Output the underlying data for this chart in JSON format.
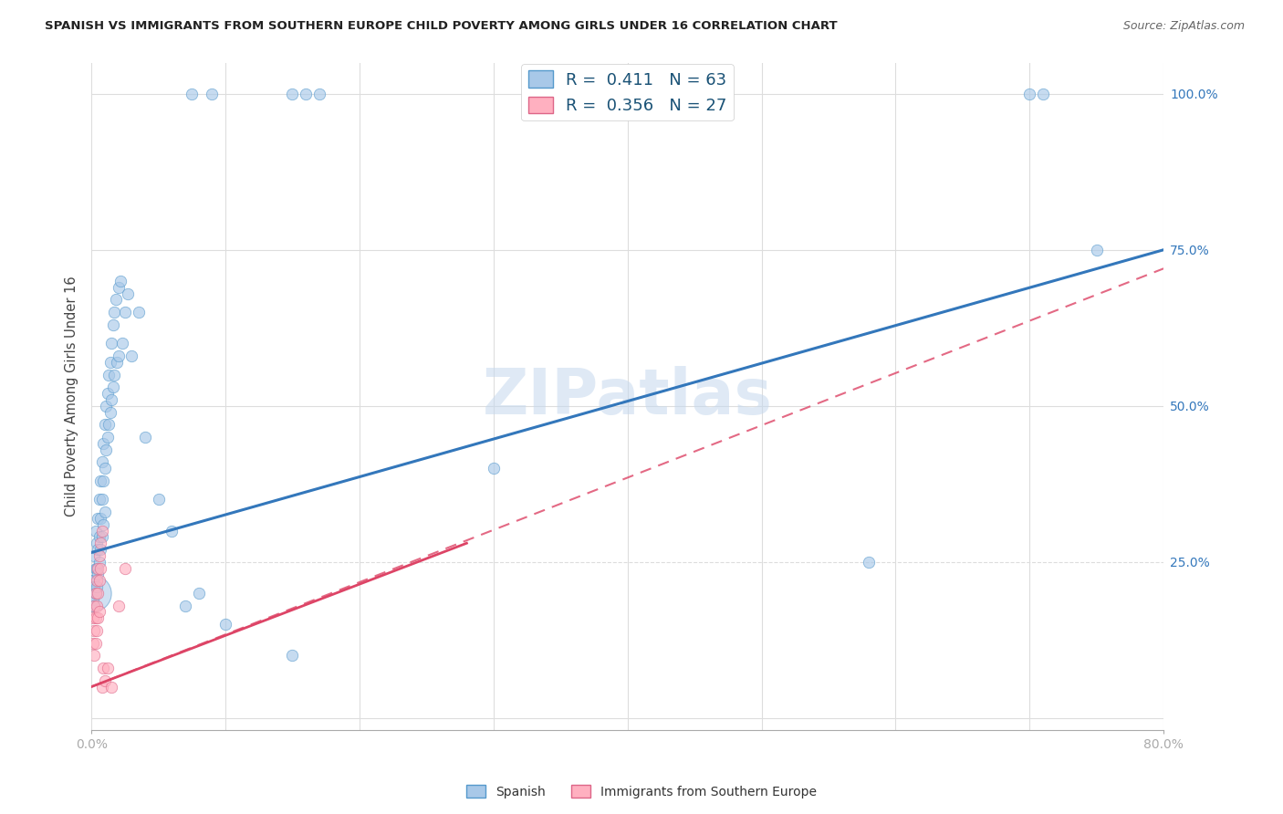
{
  "title": "SPANISH VS IMMIGRANTS FROM SOUTHERN EUROPE CHILD POVERTY AMONG GIRLS UNDER 16 CORRELATION CHART",
  "source": "Source: ZipAtlas.com",
  "ylabel": "Child Poverty Among Girls Under 16",
  "xlim": [
    0.0,
    0.8
  ],
  "ylim": [
    -0.02,
    1.05
  ],
  "ytick_positions": [
    0.0,
    0.25,
    0.5,
    0.75,
    1.0
  ],
  "yticklabels": [
    "",
    "25.0%",
    "50.0%",
    "75.0%",
    "100.0%"
  ],
  "legend_R1": "0.411",
  "legend_N1": "63",
  "legend_R2": "0.356",
  "legend_N2": "27",
  "blue_color": "#a8c8e8",
  "blue_edge_color": "#5599cc",
  "pink_color": "#ffb0c0",
  "pink_edge_color": "#dd6688",
  "blue_line_color": "#3377bb",
  "pink_line_color": "#dd4466",
  "watermark": "ZIPatlas",
  "background_color": "#ffffff",
  "grid_color": "#dddddd",
  "spanish_points": [
    [
      0.001,
      0.22
    ],
    [
      0.001,
      0.19
    ],
    [
      0.002,
      0.26
    ],
    [
      0.002,
      0.21
    ],
    [
      0.002,
      0.18
    ],
    [
      0.003,
      0.3
    ],
    [
      0.003,
      0.24
    ],
    [
      0.003,
      0.2
    ],
    [
      0.004,
      0.28
    ],
    [
      0.004,
      0.24
    ],
    [
      0.004,
      0.21
    ],
    [
      0.005,
      0.32
    ],
    [
      0.005,
      0.27
    ],
    [
      0.005,
      0.23
    ],
    [
      0.006,
      0.35
    ],
    [
      0.006,
      0.29
    ],
    [
      0.006,
      0.25
    ],
    [
      0.007,
      0.38
    ],
    [
      0.007,
      0.32
    ],
    [
      0.007,
      0.27
    ],
    [
      0.008,
      0.41
    ],
    [
      0.008,
      0.35
    ],
    [
      0.008,
      0.29
    ],
    [
      0.009,
      0.44
    ],
    [
      0.009,
      0.38
    ],
    [
      0.009,
      0.31
    ],
    [
      0.01,
      0.47
    ],
    [
      0.01,
      0.4
    ],
    [
      0.01,
      0.33
    ],
    [
      0.011,
      0.5
    ],
    [
      0.011,
      0.43
    ],
    [
      0.012,
      0.52
    ],
    [
      0.012,
      0.45
    ],
    [
      0.013,
      0.55
    ],
    [
      0.013,
      0.47
    ],
    [
      0.014,
      0.57
    ],
    [
      0.014,
      0.49
    ],
    [
      0.015,
      0.6
    ],
    [
      0.015,
      0.51
    ],
    [
      0.016,
      0.63
    ],
    [
      0.016,
      0.53
    ],
    [
      0.017,
      0.65
    ],
    [
      0.017,
      0.55
    ],
    [
      0.018,
      0.67
    ],
    [
      0.019,
      0.57
    ],
    [
      0.02,
      0.69
    ],
    [
      0.02,
      0.58
    ],
    [
      0.022,
      0.7
    ],
    [
      0.023,
      0.6
    ],
    [
      0.025,
      0.65
    ],
    [
      0.027,
      0.68
    ],
    [
      0.03,
      0.58
    ],
    [
      0.035,
      0.65
    ],
    [
      0.04,
      0.45
    ],
    [
      0.05,
      0.35
    ],
    [
      0.06,
      0.3
    ],
    [
      0.07,
      0.18
    ],
    [
      0.08,
      0.2
    ],
    [
      0.1,
      0.15
    ],
    [
      0.15,
      0.1
    ],
    [
      0.3,
      0.4
    ],
    [
      0.58,
      0.25
    ],
    [
      0.75,
      0.75
    ]
  ],
  "spanish_sizes_marker": [
    80,
    80,
    80,
    80,
    80,
    80,
    80,
    80,
    80,
    80,
    80,
    80,
    80,
    80,
    80,
    80,
    80,
    80,
    80,
    80,
    80,
    80,
    80,
    80,
    80,
    80,
    80,
    80,
    80,
    80,
    80,
    80,
    80,
    80,
    80,
    80,
    80,
    80,
    80,
    80,
    80,
    80,
    80,
    80,
    80,
    80,
    80,
    80,
    80,
    80,
    80,
    80,
    80,
    80,
    80,
    80,
    80,
    80,
    80,
    80,
    80,
    80,
    80
  ],
  "big_bubble": [
    0.001,
    0.2,
    800
  ],
  "immigrant_points": [
    [
      0.001,
      0.16
    ],
    [
      0.001,
      0.12
    ],
    [
      0.002,
      0.18
    ],
    [
      0.002,
      0.14
    ],
    [
      0.002,
      0.1
    ],
    [
      0.003,
      0.2
    ],
    [
      0.003,
      0.16
    ],
    [
      0.003,
      0.12
    ],
    [
      0.004,
      0.22
    ],
    [
      0.004,
      0.18
    ],
    [
      0.004,
      0.14
    ],
    [
      0.005,
      0.24
    ],
    [
      0.005,
      0.2
    ],
    [
      0.005,
      0.16
    ],
    [
      0.006,
      0.26
    ],
    [
      0.006,
      0.22
    ],
    [
      0.006,
      0.17
    ],
    [
      0.007,
      0.28
    ],
    [
      0.007,
      0.24
    ],
    [
      0.008,
      0.3
    ],
    [
      0.008,
      0.05
    ],
    [
      0.009,
      0.08
    ],
    [
      0.01,
      0.06
    ],
    [
      0.012,
      0.08
    ],
    [
      0.015,
      0.05
    ],
    [
      0.02,
      0.18
    ],
    [
      0.025,
      0.24
    ]
  ],
  "top_blue_points": [
    [
      0.075,
      1.0
    ],
    [
      0.09,
      1.0
    ],
    [
      0.15,
      1.0
    ],
    [
      0.16,
      1.0
    ],
    [
      0.17,
      1.0
    ],
    [
      0.7,
      1.0
    ],
    [
      0.71,
      1.0
    ]
  ],
  "blue_line": {
    "x0": 0.0,
    "y0": 0.265,
    "x1": 0.8,
    "y1": 0.75
  },
  "pink_dashed_line": {
    "x0": 0.0,
    "y0": 0.05,
    "x1": 0.8,
    "y1": 0.72
  }
}
